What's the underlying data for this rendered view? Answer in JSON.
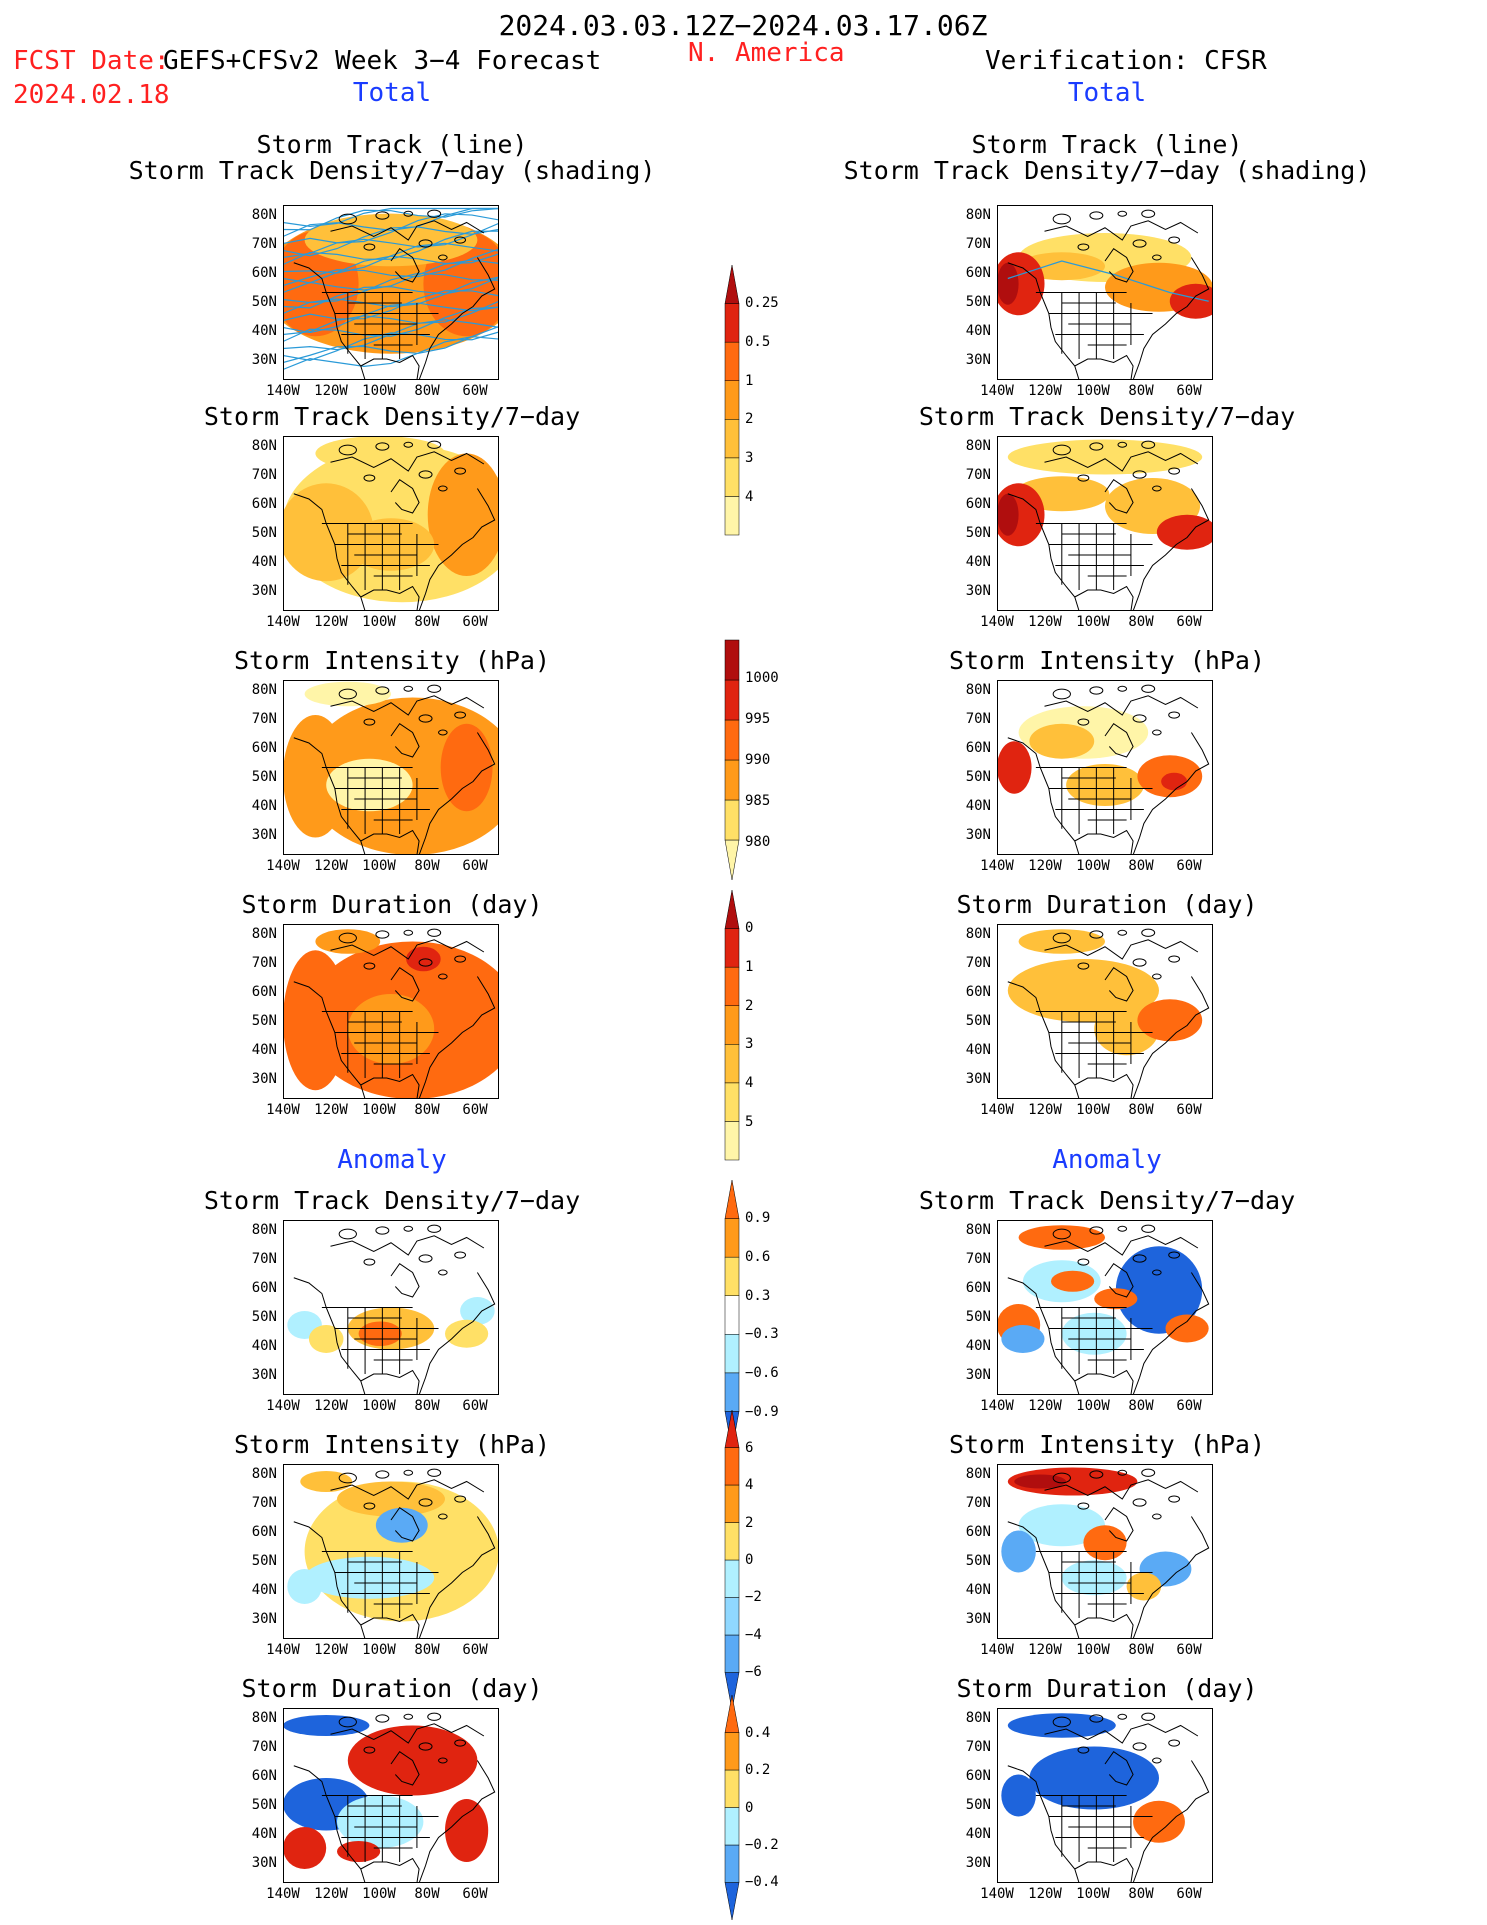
{
  "header": {
    "time_range": "2024.03.03.12Z−2024.03.17.06Z",
    "fcst_date_label": "FCST Date:",
    "fcst_date": "2024.02.18",
    "forecast_label": "GEFS+CFSv2 Week 3−4 Forecast",
    "region": "N. America",
    "verification": "Verification: CFSR"
  },
  "sections": {
    "total_left": "Total",
    "total_right": "Total",
    "anomaly_left": "Anomaly",
    "anomaly_right": "Anomaly"
  },
  "panel_titles": {
    "track_line": "Storm Track (line)",
    "track_shading": "Storm Track Density/7−day (shading)",
    "density": "Storm Track Density/7−day",
    "intensity": "Storm Intensity (hPa)",
    "duration": "Storm Duration (day)"
  },
  "axes": {
    "lat_labels": [
      "80N",
      "70N",
      "60N",
      "50N",
      "40N",
      "30N"
    ],
    "lon_labels": [
      "140W",
      "120W",
      "100W",
      "80W",
      "60W"
    ]
  },
  "colors": {
    "c_lightyellow": "#fff5a8",
    "c_yellow": "#ffe066",
    "c_lightorange": "#ffc03a",
    "c_orange": "#ff9a1a",
    "c_darkorange": "#ff6a10",
    "c_red": "#e02410",
    "c_darkred": "#b00e0e",
    "c_lightblue": "#b0f0ff",
    "c_skyblue": "#90d8ff",
    "c_blue": "#5aaaf5",
    "c_deepblue": "#1e64dc",
    "track_line": "#2a9ad8"
  },
  "chart_data": {
    "type": "heatmap",
    "layout": "7 rows x 2 columns of map panels (Forecast left, CFSR verification right), North America 140W-50W, 25N-85N",
    "colorbars": [
      {
        "field": "Storm Track Density/7-day (total)",
        "levels": [
          0.25,
          0.5,
          1,
          2,
          3,
          4
        ],
        "labels": [
          "0.25",
          "0.5",
          "1",
          "2",
          "3",
          "4"
        ]
      },
      {
        "field": "Storm Intensity (hPa) (total)",
        "levels": [
          1000,
          995,
          990,
          985,
          980
        ],
        "labels": [
          "1000",
          "995",
          "990",
          "985",
          "980"
        ]
      },
      {
        "field": "Storm Duration (day) (total)",
        "levels": [
          0,
          1,
          2,
          3,
          4,
          5
        ],
        "labels": [
          "0",
          "1",
          "2",
          "3",
          "4",
          "5"
        ]
      },
      {
        "field": "Storm Track Density/7-day (anomaly)",
        "levels": [
          -0.9,
          -0.6,
          -0.3,
          0.3,
          0.6,
          0.9
        ],
        "labels": [
          "0.9",
          "0.6",
          "0.3",
          "−0.3",
          "−0.6",
          "−0.9"
        ]
      },
      {
        "field": "Storm Intensity (hPa) (anomaly)",
        "levels": [
          -6,
          -4,
          -2,
          0,
          2,
          4,
          6
        ],
        "labels": [
          "6",
          "4",
          "2",
          "0",
          "−2",
          "−4",
          "−6"
        ]
      },
      {
        "field": "Storm Duration (day) (anomaly)",
        "levels": [
          -0.4,
          -0.2,
          0,
          0.2,
          0.4
        ],
        "labels": [
          "0.4",
          "0.2",
          "0",
          "−0.2",
          "−0.4"
        ]
      }
    ]
  }
}
